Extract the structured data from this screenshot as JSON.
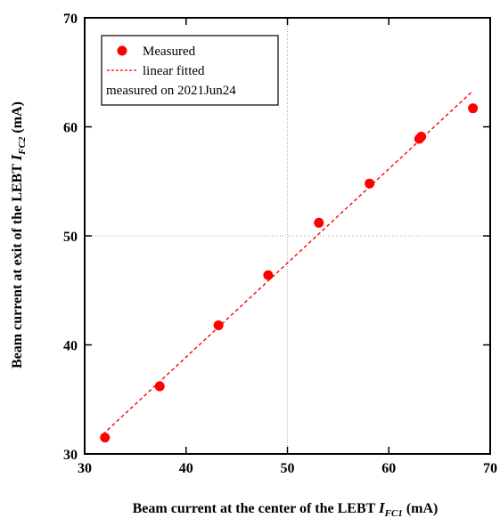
{
  "chart_data": {
    "type": "scatter",
    "xlabel": {
      "main": "Beam current at the center of the LEBT ",
      "var": "I",
      "sub": "FC1",
      "unit": " (mA)"
    },
    "ylabel": {
      "main": "Beam current at exit of the LEBT ",
      "var": "I",
      "sub": "FC2",
      "unit": " (mA)"
    },
    "xlim": [
      30,
      70
    ],
    "ylim": [
      30,
      70
    ],
    "x_ticks": [
      30,
      40,
      50,
      60,
      70
    ],
    "y_ticks": [
      30,
      40,
      50,
      60,
      70
    ],
    "grid": "dotted lines at x=50 and y=50",
    "legend_position": "top-left",
    "legend": {
      "measured": "Measured",
      "fit": "linear fitted",
      "note": "measured on 2021Jun24"
    },
    "series": [
      {
        "name": "Measured",
        "style": "markers",
        "color": "#ff0000",
        "x": [
          32.0,
          37.4,
          43.2,
          48.1,
          53.1,
          58.1,
          63.0,
          63.2,
          68.3
        ],
        "y": [
          31.5,
          36.2,
          41.8,
          46.4,
          51.2,
          54.8,
          58.9,
          59.1,
          61.7
        ]
      },
      {
        "name": "linear fitted",
        "style": "dashed-line",
        "color": "#ff0000",
        "x": [
          31.8,
          68.3
        ],
        "y": [
          31.8,
          63.3
        ]
      }
    ]
  }
}
